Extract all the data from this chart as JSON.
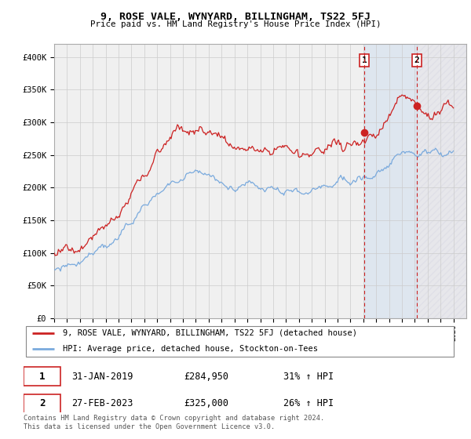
{
  "title": "9, ROSE VALE, WYNYARD, BILLINGHAM, TS22 5FJ",
  "subtitle": "Price paid vs. HM Land Registry's House Price Index (HPI)",
  "ylim": [
    0,
    420000
  ],
  "yticks": [
    0,
    50000,
    100000,
    150000,
    200000,
    250000,
    300000,
    350000,
    400000
  ],
  "ytick_labels": [
    "£0",
    "£50K",
    "£100K",
    "£150K",
    "£200K",
    "£250K",
    "£300K",
    "£350K",
    "£400K"
  ],
  "hpi_color": "#7aaadd",
  "price_color": "#cc2222",
  "vline_color": "#cc2222",
  "background_color": "#ffffff",
  "plot_bg_color": "#f5f5f5",
  "grid_color": "#cccccc",
  "shade_color": "#ddeeff",
  "legend_label_price": "9, ROSE VALE, WYNYARD, BILLINGHAM, TS22 5FJ (detached house)",
  "legend_label_hpi": "HPI: Average price, detached house, Stockton-on-Tees",
  "annotation1_date": "31-JAN-2019",
  "annotation1_price": "£284,950",
  "annotation1_hpi": "31% ↑ HPI",
  "annotation2_date": "27-FEB-2023",
  "annotation2_price": "£325,000",
  "annotation2_hpi": "26% ↑ HPI",
  "footnote": "Contains HM Land Registry data © Crown copyright and database right 2024.\nThis data is licensed under the Open Government Licence v3.0.",
  "sale1_year": 2019.08,
  "sale1_price": 284950,
  "sale2_year": 2023.16,
  "sale2_price": 325000,
  "xmin": 1995,
  "xmax": 2027
}
